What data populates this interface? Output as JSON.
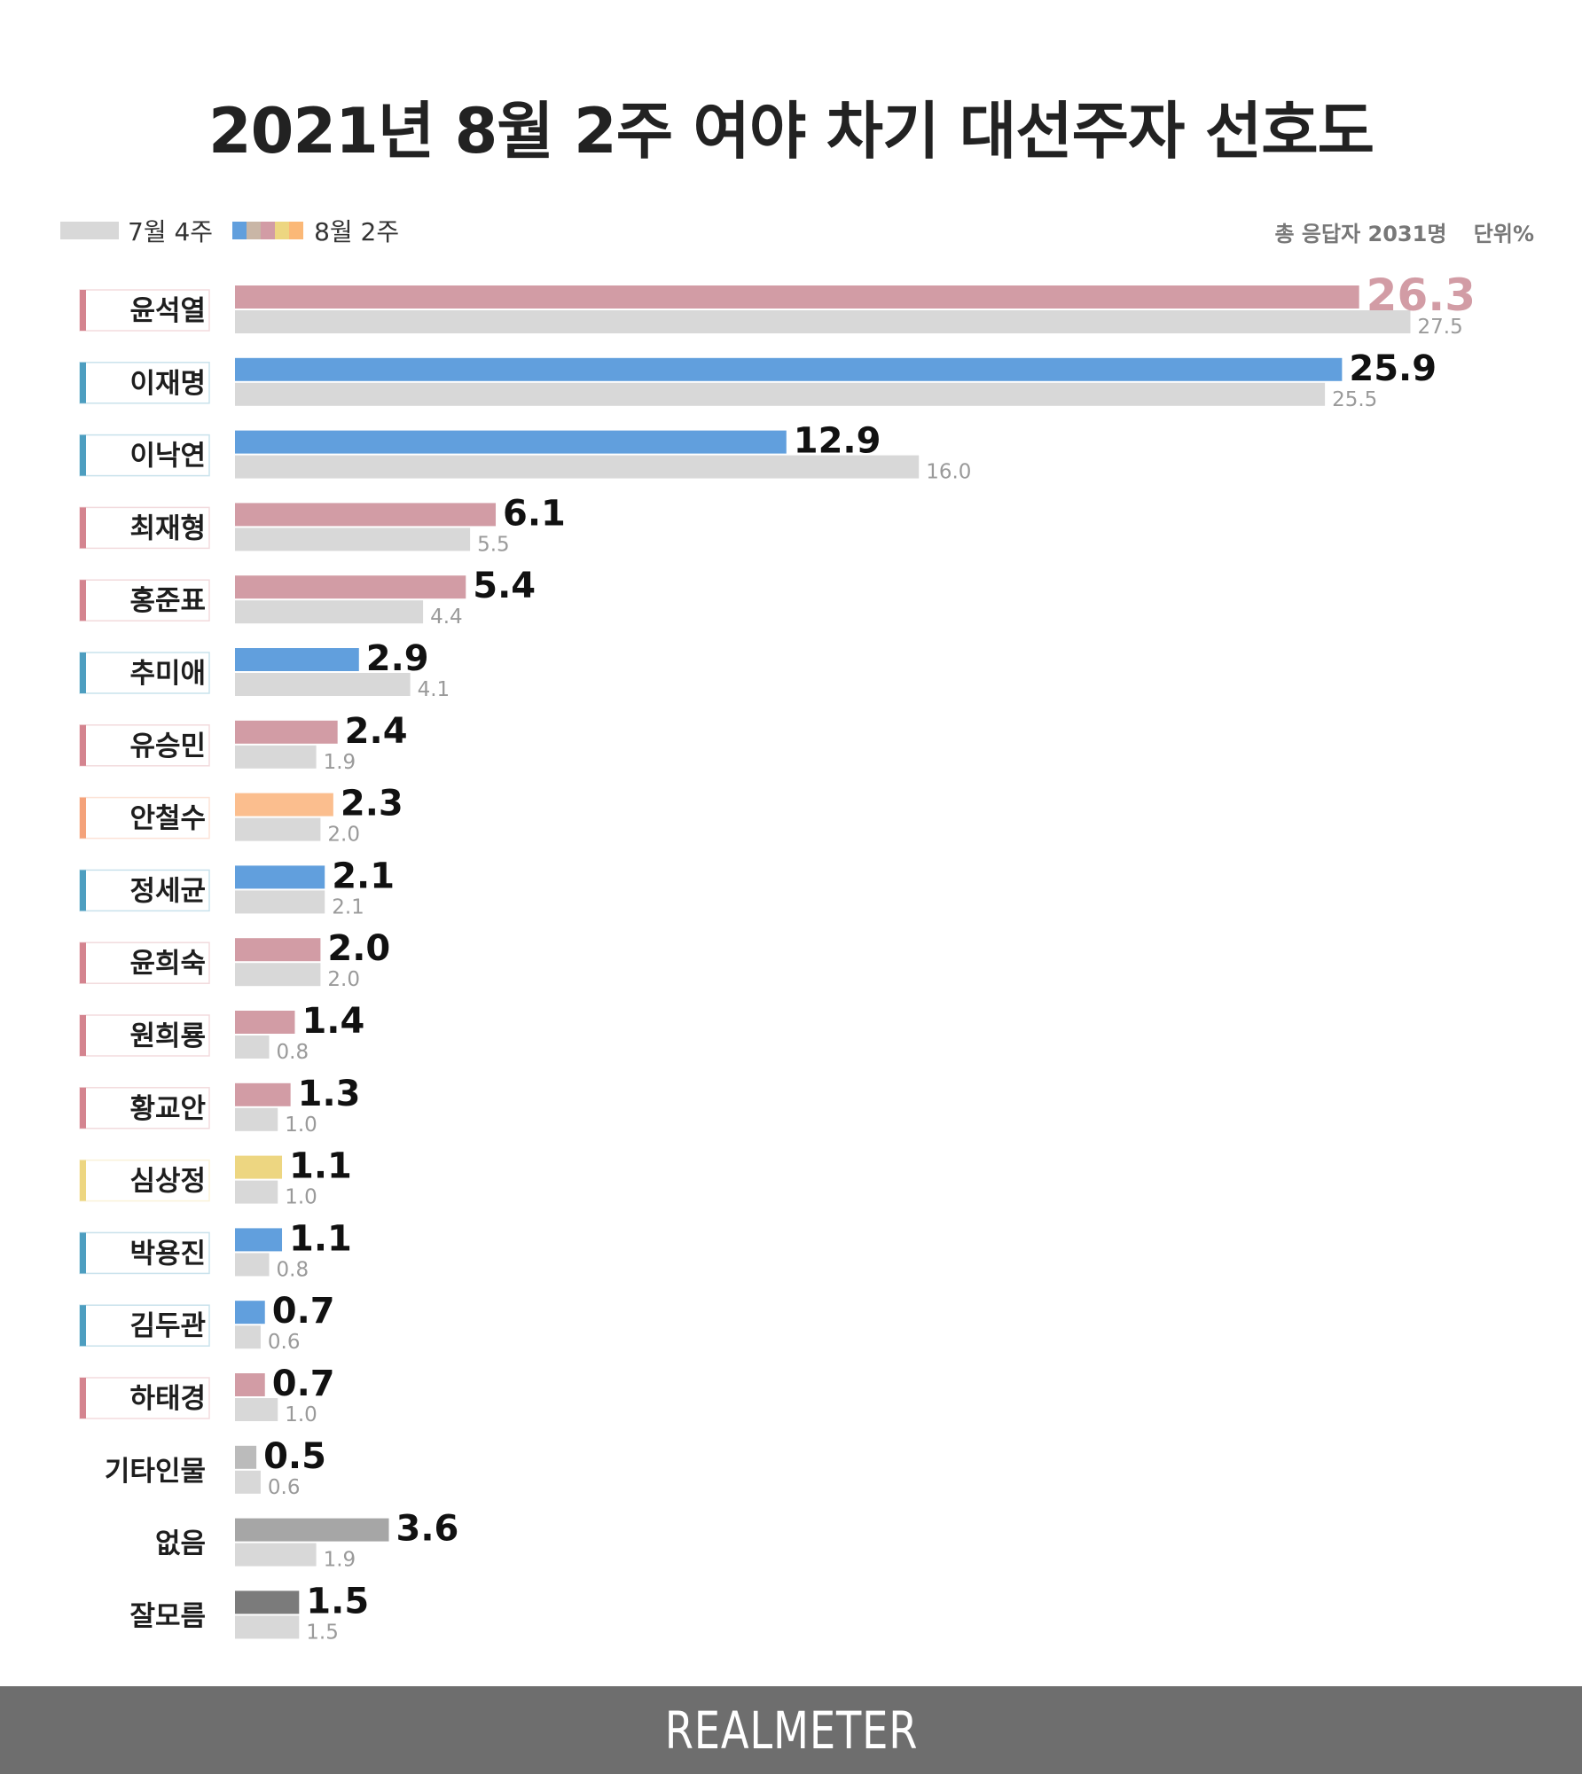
{
  "title": "2021년 8월 2주 여야 차기 대선주자 선호도",
  "legend": {
    "prev_label": "7월 4주",
    "current_label": "8월 2주",
    "current_colors": [
      "#619fdd",
      "#c9b6a6",
      "#d29ca5",
      "#edd681",
      "#fbb877"
    ]
  },
  "meta": {
    "respondents": "총 응답자 2031명",
    "unit": "단위%"
  },
  "footer": {
    "brand": "REALMETER"
  },
  "chart_data": {
    "type": "bar",
    "orientation": "horizontal",
    "title": "2021년 8월 2주 여야 차기 대선주자 선호도",
    "unit": "%",
    "series_names": [
      "8월 2주",
      "7월 4주"
    ],
    "xlim": [
      0,
      27.5
    ],
    "categories": [
      "윤석열",
      "이재명",
      "이낙연",
      "최재형",
      "홍준표",
      "추미애",
      "유승민",
      "안철수",
      "정세균",
      "윤희숙",
      "원희룡",
      "황교안",
      "심상정",
      "박용진",
      "김두관",
      "하태경",
      "기타인물",
      "없음",
      "잘모름"
    ],
    "current": [
      26.3,
      25.9,
      12.9,
      6.1,
      5.4,
      2.9,
      2.4,
      2.3,
      2.1,
      2.0,
      1.4,
      1.3,
      1.1,
      1.1,
      0.7,
      0.7,
      0.5,
      3.6,
      1.5
    ],
    "previous": [
      27.5,
      25.5,
      16.0,
      5.5,
      4.4,
      4.1,
      1.9,
      2.0,
      2.1,
      2.0,
      0.8,
      1.0,
      1.0,
      0.8,
      0.6,
      1.0,
      0.6,
      1.9,
      1.5
    ],
    "current_labels": [
      "26.3",
      "25.9",
      "12.9",
      "6.1",
      "5.4",
      "2.9",
      "2.4",
      "2.3",
      "2.1",
      "2.0",
      "1.4",
      "1.3",
      "1.1",
      "1.1",
      "0.7",
      "0.7",
      "0.5",
      "3.6",
      "1.5"
    ],
    "previous_labels": [
      "27.5",
      "25.5",
      "16.0",
      "5.5",
      "4.4",
      "4.1",
      "1.9",
      "2.0",
      "2.1",
      "2.0",
      "0.8",
      "1.0",
      "1.0",
      "0.8",
      "0.6",
      "1.0",
      "0.6",
      "1.9",
      "1.5"
    ],
    "bar_colors": [
      "#d29ca5",
      "#619fdd",
      "#619fdd",
      "#d29ca5",
      "#d29ca5",
      "#619fdd",
      "#d29ca5",
      "#fbbe8e",
      "#619fdd",
      "#d29ca5",
      "#d29ca5",
      "#d29ca5",
      "#edd681",
      "#619fdd",
      "#619fdd",
      "#d29ca5",
      "#bbbbbb",
      "#a6a6a6",
      "#7b7b7b"
    ],
    "party_colors": [
      "#d4848f",
      "#4d9ec0",
      "#4d9ec0",
      "#d4848f",
      "#d4848f",
      "#4d9ec0",
      "#d4848f",
      "#f4a27a",
      "#4d9ec0",
      "#d4848f",
      "#d4848f",
      "#d4848f",
      "#edd681",
      "#4d9ec0",
      "#4d9ec0",
      "#d4848f",
      null,
      null,
      null
    ],
    "highlight_color": "#d29ca5",
    "previous_color": "#d8d8d8"
  }
}
